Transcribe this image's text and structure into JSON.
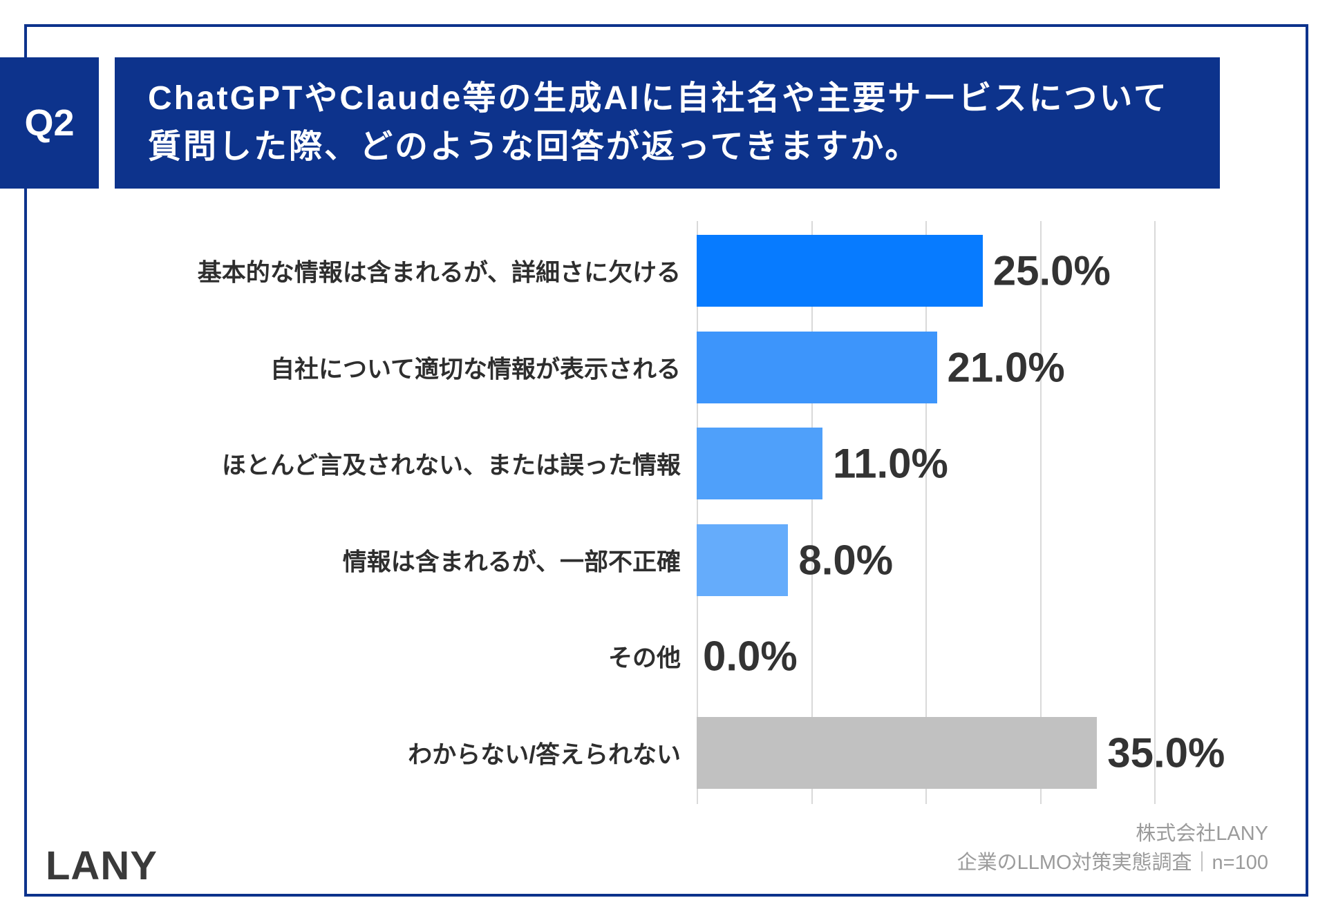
{
  "header": {
    "question_number": "Q2",
    "title_line1": "ChatGPTやClaude等の生成AIに自社名や主要サービスについて",
    "title_line2": "質問した際、どのような回答が返ってきますか。"
  },
  "chart_data": {
    "type": "bar",
    "orientation": "horizontal",
    "categories": [
      "基本的な情報は含まれるが、詳細さに欠ける",
      "自社について適切な情報が表示される",
      "ほとんど言及されない、または誤った情報",
      "情報は含まれるが、一部不正確",
      "その他",
      "わからない/答えられない"
    ],
    "values": [
      25.0,
      21.0,
      11.0,
      8.0,
      0.0,
      35.0
    ],
    "value_labels": [
      "25.0%",
      "21.0%",
      "11.0%",
      "8.0%",
      "0.0%",
      "35.0%"
    ],
    "bar_colors": [
      "#077bff",
      "#3d95fb",
      "#4fa0fa",
      "#65acfb",
      "#65acfb",
      "#c1c1c1"
    ],
    "title": "",
    "xlabel": "",
    "ylabel": "",
    "x_gridlines_percent": [
      0,
      10,
      20,
      30,
      40
    ],
    "xlim": [
      0,
      53
    ],
    "grid": true,
    "legend": false
  },
  "footer": {
    "logo": "LANY",
    "source_line1": "株式会社LANY",
    "source_line2": "企業のLLMO対策実態調査｜n=100"
  },
  "colors": {
    "navy": "#0d338c",
    "gridline": "#d9d9d9",
    "value_text": "#333333",
    "category_text": "#2e2e2e",
    "source_text": "#9b9b9b",
    "logo_text": "#3a3a3a",
    "background": "#ffffff"
  }
}
